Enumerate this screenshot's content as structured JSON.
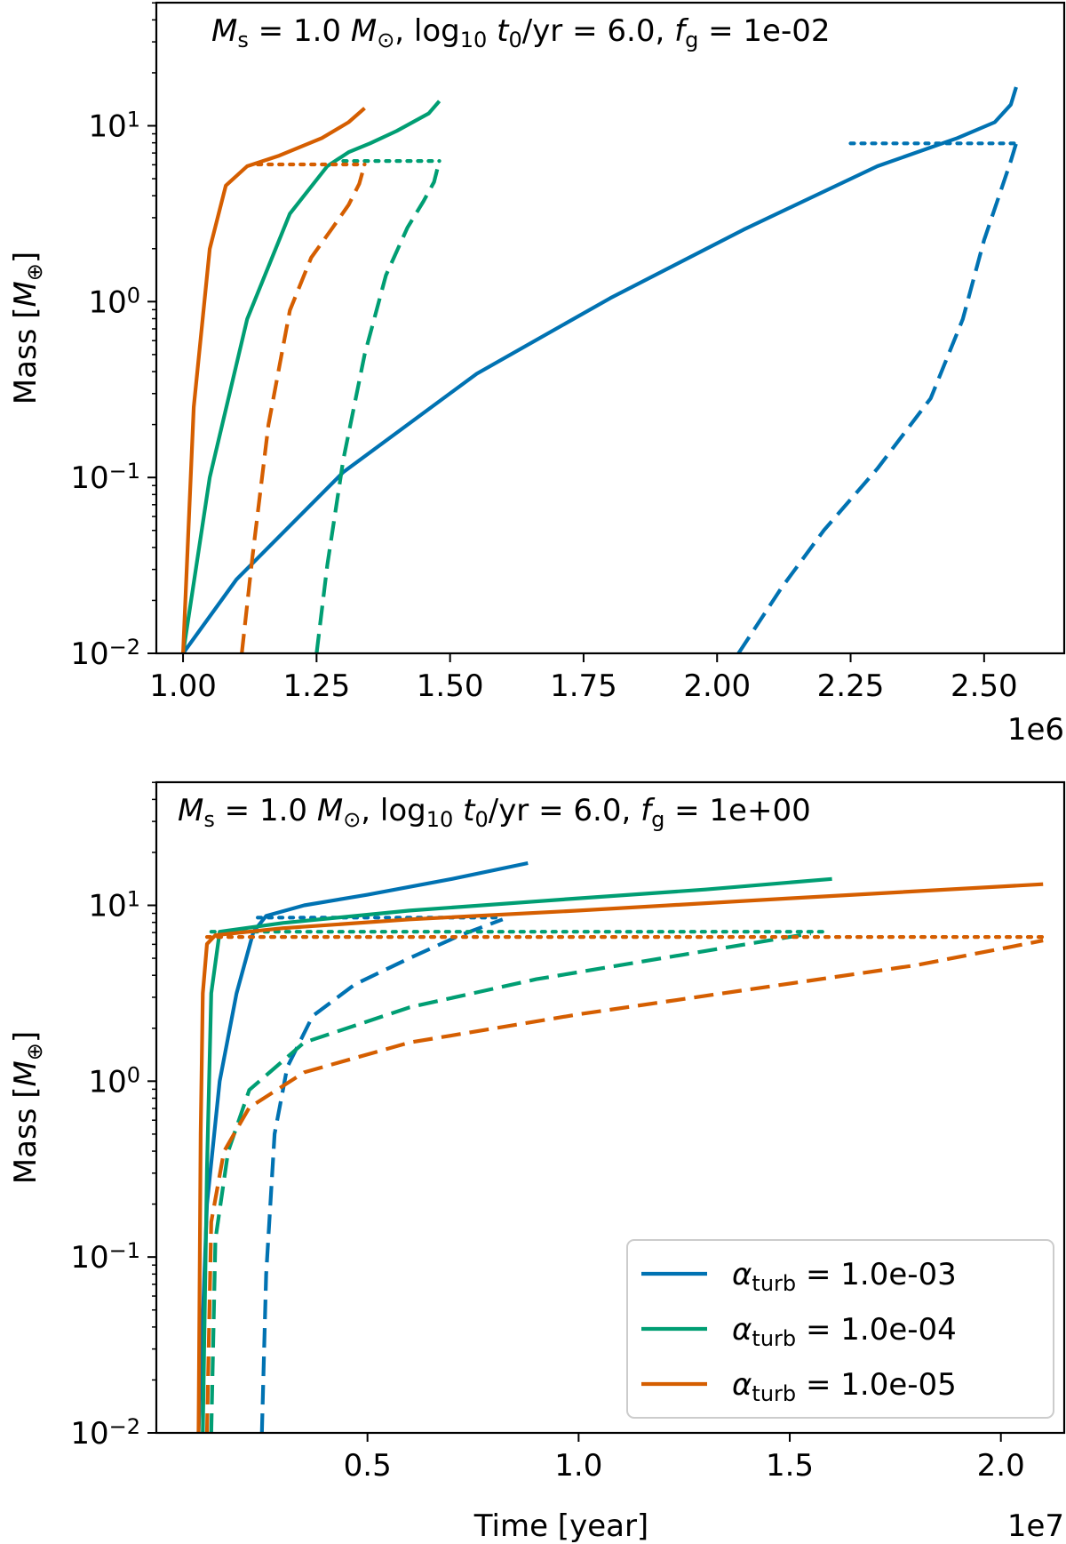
{
  "chart_data": [
    {
      "type": "line",
      "title_parts": [
        "M",
        "s",
        " = 1.0 M",
        "⊙",
        ", log",
        "10",
        " t",
        "0",
        "/yr = 6.0, f",
        "g",
        " = 1e-02"
      ],
      "xlabel": "",
      "ylabel_parts": [
        "Mass [M",
        "⊕",
        "]"
      ],
      "xscale": "linear",
      "yscale": "log",
      "xlim": [
        0.95,
        2.65
      ],
      "ylim_log10": [
        -2,
        1.7
      ],
      "x_offset_text": "1e6",
      "x_ticks": [
        1.0,
        1.25,
        1.5,
        1.75,
        2.0,
        2.25,
        2.5
      ],
      "x_tick_labels": [
        "1.00",
        "1.25",
        "1.50",
        "1.75",
        "2.00",
        "2.25",
        "2.50"
      ],
      "y_ticks_log10": [
        -2,
        -1,
        0,
        1
      ],
      "y_tick_labels": [
        [
          "10",
          "−2"
        ],
        [
          "10",
          "−1"
        ],
        [
          "10",
          "0"
        ],
        [
          "10",
          "1"
        ]
      ],
      "grid": false,
      "series": [
        {
          "name": "alpha_turb = 1.0e-03",
          "color": "#0072B2",
          "style": "solid",
          "x": [
            1.0,
            1.1,
            1.3,
            1.55,
            1.8,
            2.05,
            2.3,
            2.45,
            2.52,
            2.55,
            2.56
          ],
          "log10_y": [
            -2.0,
            -1.58,
            -0.97,
            -0.41,
            0.02,
            0.41,
            0.77,
            0.93,
            1.02,
            1.12,
            1.22
          ]
        },
        {
          "name": "alpha_turb = 1.0e-03",
          "color": "#0072B2",
          "style": "dashed",
          "x": [
            2.04,
            2.12,
            2.2,
            2.3,
            2.4,
            2.46,
            2.5,
            2.53,
            2.55,
            2.56
          ],
          "log10_y": [
            -2.0,
            -1.63,
            -1.3,
            -0.95,
            -0.55,
            -0.1,
            0.35,
            0.62,
            0.8,
            0.9
          ]
        },
        {
          "name": "alpha_turb = 1.0e-03",
          "color": "#0072B2",
          "style": "dotted",
          "x": [
            2.25,
            2.56
          ],
          "log10_y": [
            0.9,
            0.9
          ]
        },
        {
          "name": "alpha_turb = 1.0e-04",
          "color": "#009E73",
          "style": "solid",
          "x": [
            1.0,
            1.05,
            1.12,
            1.2,
            1.27,
            1.31,
            1.35,
            1.4,
            1.46,
            1.48
          ],
          "log10_y": [
            -2.0,
            -1.0,
            -0.1,
            0.5,
            0.77,
            0.85,
            0.9,
            0.97,
            1.07,
            1.14
          ]
        },
        {
          "name": "alpha_turb = 1.0e-04",
          "color": "#009E73",
          "style": "dashed",
          "x": [
            1.25,
            1.27,
            1.3,
            1.34,
            1.38,
            1.42,
            1.45,
            1.47,
            1.48
          ],
          "log10_y": [
            -2.0,
            -1.5,
            -0.9,
            -0.3,
            0.15,
            0.42,
            0.57,
            0.68,
            0.8
          ]
        },
        {
          "name": "alpha_turb = 1.0e-04",
          "color": "#009E73",
          "style": "dotted",
          "x": [
            1.3,
            1.48
          ],
          "log10_y": [
            0.8,
            0.8
          ]
        },
        {
          "name": "alpha_turb = 1.0e-05",
          "color": "#D55E00",
          "style": "solid",
          "x": [
            1.0,
            1.02,
            1.05,
            1.08,
            1.12,
            1.18,
            1.26,
            1.31,
            1.34
          ],
          "log10_y": [
            -2.0,
            -0.6,
            0.3,
            0.66,
            0.77,
            0.83,
            0.93,
            1.02,
            1.1
          ]
        },
        {
          "name": "alpha_turb = 1.0e-05",
          "color": "#D55E00",
          "style": "dashed",
          "x": [
            1.11,
            1.13,
            1.16,
            1.2,
            1.24,
            1.28,
            1.31,
            1.33,
            1.34
          ],
          "log10_y": [
            -2.0,
            -1.45,
            -0.7,
            -0.05,
            0.25,
            0.42,
            0.55,
            0.67,
            0.78
          ]
        },
        {
          "name": "alpha_turb = 1.0e-05",
          "color": "#D55E00",
          "style": "dotted",
          "x": [
            1.14,
            1.34
          ],
          "log10_y": [
            0.78,
            0.78
          ]
        }
      ]
    },
    {
      "type": "line",
      "title_parts": [
        "M",
        "s",
        " = 1.0 M",
        "⊙",
        ", log",
        "10",
        " t",
        "0",
        "/yr = 6.0, f",
        "g",
        " = 1e+00"
      ],
      "xlabel": "Time [year]",
      "ylabel_parts": [
        "Mass [M",
        "⊕",
        "]"
      ],
      "xscale": "linear",
      "yscale": "log",
      "xlim": [
        0.0,
        2.15
      ],
      "ylim_log10": [
        -2,
        1.7
      ],
      "x_offset_text": "1e7",
      "x_ticks": [
        0.5,
        1.0,
        1.5,
        2.0
      ],
      "x_tick_labels": [
        "0.5",
        "1.0",
        "1.5",
        "2.0"
      ],
      "y_ticks_log10": [
        -2,
        -1,
        0,
        1
      ],
      "y_tick_labels": [
        [
          "10",
          "−2"
        ],
        [
          "10",
          "−1"
        ],
        [
          "10",
          "0"
        ],
        [
          "10",
          "1"
        ]
      ],
      "grid": false,
      "legend": {
        "location": "lower right",
        "entries": [
          {
            "prefix": "α",
            "sub": "turb",
            "suffix": " = 1.0e-03",
            "color": "#0072B2"
          },
          {
            "prefix": "α",
            "sub": "turb",
            "suffix": " = 1.0e-04",
            "color": "#009E73"
          },
          {
            "prefix": "α",
            "sub": "turb",
            "suffix": " = 1.0e-05",
            "color": "#D55E00"
          }
        ]
      },
      "series": [
        {
          "name": "alpha_turb = 1.0e-03",
          "color": "#0072B2",
          "style": "solid",
          "x": [
            0.1,
            0.12,
            0.15,
            0.19,
            0.23,
            0.26,
            0.35,
            0.5,
            0.7,
            0.88
          ],
          "log10_y": [
            -2.0,
            -0.7,
            0.0,
            0.5,
            0.85,
            0.94,
            1.0,
            1.06,
            1.15,
            1.24
          ]
        },
        {
          "name": "alpha_turb = 1.0e-03",
          "color": "#0072B2",
          "style": "dashed",
          "x": [
            0.25,
            0.26,
            0.28,
            0.31,
            0.37,
            0.47,
            0.6,
            0.72,
            0.82
          ],
          "log10_y": [
            -2.0,
            -1.1,
            -0.3,
            0.08,
            0.37,
            0.55,
            0.7,
            0.83,
            0.92
          ]
        },
        {
          "name": "alpha_turb = 1.0e-03",
          "color": "#0072B2",
          "style": "dotted",
          "x": [
            0.24,
            0.82
          ],
          "log10_y": [
            0.93,
            0.93
          ]
        },
        {
          "name": "alpha_turb = 1.0e-04",
          "color": "#009E73",
          "style": "solid",
          "x": [
            0.11,
            0.12,
            0.13,
            0.15,
            0.3,
            0.6,
            1.0,
            1.3,
            1.6
          ],
          "log10_y": [
            -2.0,
            -0.5,
            0.5,
            0.85,
            0.9,
            0.97,
            1.04,
            1.09,
            1.15
          ]
        },
        {
          "name": "alpha_turb = 1.0e-04",
          "color": "#009E73",
          "style": "dashed",
          "x": [
            0.13,
            0.14,
            0.17,
            0.22,
            0.35,
            0.6,
            0.9,
            1.2,
            1.4,
            1.55
          ],
          "log10_y": [
            -2.0,
            -0.9,
            -0.4,
            -0.05,
            0.22,
            0.42,
            0.58,
            0.7,
            0.78,
            0.84
          ]
        },
        {
          "name": "alpha_turb = 1.0e-04",
          "color": "#009E73",
          "style": "dotted",
          "x": [
            0.13,
            1.58
          ],
          "log10_y": [
            0.85,
            0.85
          ]
        },
        {
          "name": "alpha_turb = 1.0e-05",
          "color": "#D55E00",
          "style": "solid",
          "x": [
            0.1,
            0.105,
            0.11,
            0.12,
            0.14,
            0.3,
            0.6,
            1.0,
            1.5,
            2.1
          ],
          "log10_y": [
            -2.0,
            -0.3,
            0.5,
            0.78,
            0.83,
            0.87,
            0.92,
            0.97,
            1.04,
            1.12
          ]
        },
        {
          "name": "alpha_turb = 1.0e-05",
          "color": "#D55E00",
          "style": "dashed",
          "x": [
            0.12,
            0.13,
            0.16,
            0.22,
            0.35,
            0.6,
            1.0,
            1.4,
            1.8,
            2.1
          ],
          "log10_y": [
            -2.0,
            -0.8,
            -0.4,
            -0.15,
            0.05,
            0.22,
            0.38,
            0.52,
            0.66,
            0.8
          ]
        },
        {
          "name": "alpha_turb = 1.0e-05",
          "color": "#D55E00",
          "style": "dotted",
          "x": [
            0.12,
            2.1
          ],
          "log10_y": [
            0.82,
            0.82
          ]
        }
      ]
    }
  ]
}
